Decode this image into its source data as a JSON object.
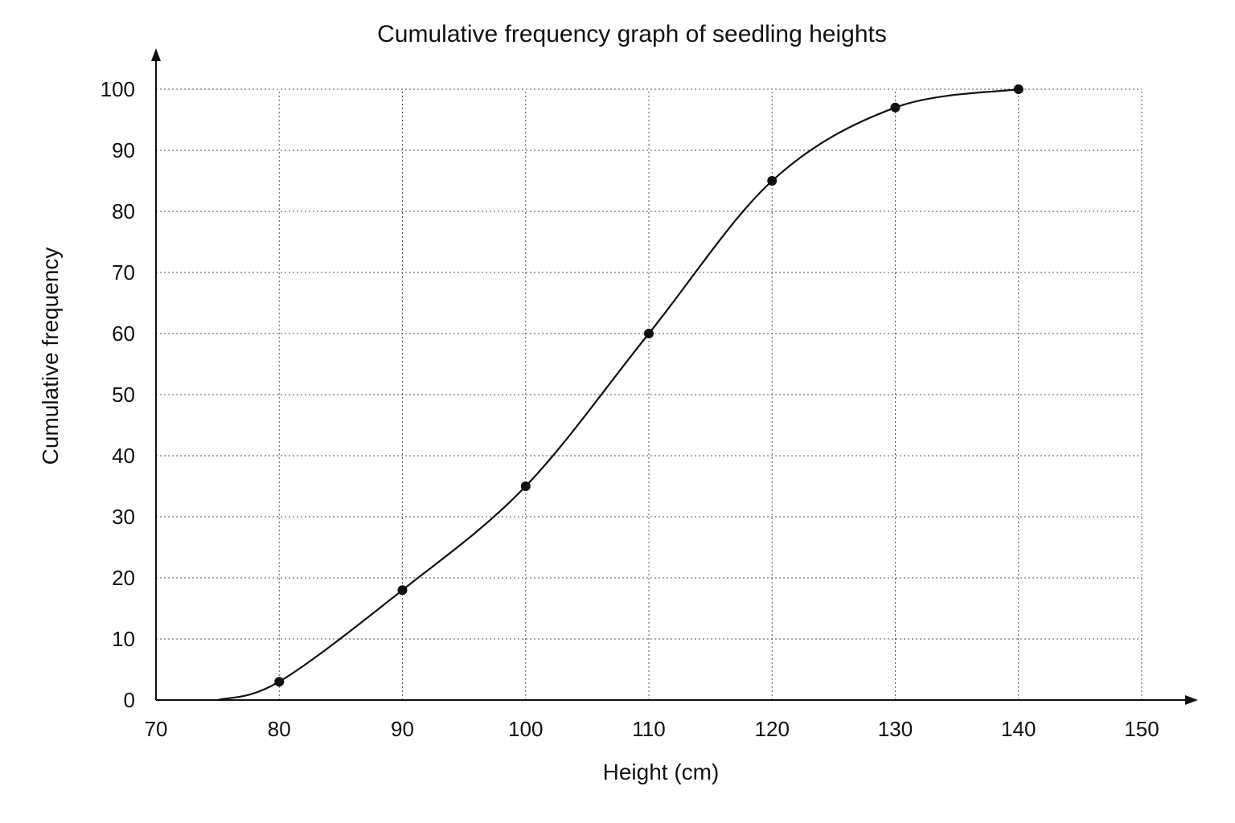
{
  "chart_data": {
    "type": "line",
    "title": "Cumulative frequency graph of seedling heights",
    "xlabel": "Height (cm)",
    "ylabel": "Cumulative frequency",
    "xlim": [
      70,
      150
    ],
    "ylim": [
      0,
      100
    ],
    "x_ticks": [
      70,
      80,
      90,
      100,
      110,
      120,
      130,
      140,
      150
    ],
    "y_ticks": [
      0,
      10,
      20,
      30,
      40,
      50,
      60,
      70,
      80,
      90,
      100
    ],
    "grid": true,
    "series": [
      {
        "curve_start": {
          "x": 75,
          "y": 0
        },
        "points": [
          {
            "x": 80,
            "y": 3
          },
          {
            "x": 90,
            "y": 18
          },
          {
            "x": 100,
            "y": 35
          },
          {
            "x": 110,
            "y": 60
          },
          {
            "x": 120,
            "y": 85
          },
          {
            "x": 130,
            "y": 97
          },
          {
            "x": 140,
            "y": 100
          }
        ]
      }
    ]
  }
}
